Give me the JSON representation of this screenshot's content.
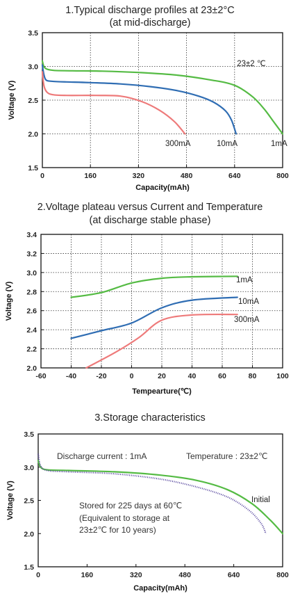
{
  "chart_data": [
    {
      "type": "line",
      "title": [
        "1.Typical discharge profiles at 23±2°C",
        "(at mid-discharge)"
      ],
      "xlabel": "Capacity(mAh)",
      "ylabel": "Voltage (V)",
      "xlim": [
        0,
        800
      ],
      "ylim": [
        1.5,
        3.5
      ],
      "xticks": [
        0,
        160,
        320,
        480,
        640,
        800
      ],
      "yticks": [
        1.5,
        2.0,
        2.5,
        3.0,
        3.5
      ],
      "grid": true,
      "annotation": "23±2 ℃",
      "series": [
        {
          "name": "1mA",
          "color": "#55bb44",
          "points": [
            [
              0,
              3.08
            ],
            [
              5,
              3.0
            ],
            [
              15,
              2.96
            ],
            [
              40,
              2.94
            ],
            [
              100,
              2.935
            ],
            [
              200,
              2.93
            ],
            [
              320,
              2.91
            ],
            [
              450,
              2.87
            ],
            [
              560,
              2.8
            ],
            [
              640,
              2.72
            ],
            [
              700,
              2.55
            ],
            [
              740,
              2.36
            ],
            [
              770,
              2.18
            ],
            [
              800,
              2.0
            ]
          ]
        },
        {
          "name": "10mA",
          "color": "#2f6db3",
          "points": [
            [
              0,
              3.02
            ],
            [
              5,
              2.88
            ],
            [
              12,
              2.8
            ],
            [
              30,
              2.78
            ],
            [
              80,
              2.77
            ],
            [
              160,
              2.76
            ],
            [
              260,
              2.74
            ],
            [
              360,
              2.7
            ],
            [
              450,
              2.64
            ],
            [
              520,
              2.56
            ],
            [
              570,
              2.47
            ],
            [
              610,
              2.34
            ],
            [
              630,
              2.2
            ],
            [
              645,
              2.0
            ]
          ]
        },
        {
          "name": "300mA",
          "color": "#ee7a7a",
          "points": [
            [
              0,
              2.92
            ],
            [
              5,
              2.72
            ],
            [
              15,
              2.62
            ],
            [
              35,
              2.58
            ],
            [
              80,
              2.57
            ],
            [
              180,
              2.57
            ],
            [
              260,
              2.56
            ],
            [
              330,
              2.48
            ],
            [
              390,
              2.35
            ],
            [
              440,
              2.18
            ],
            [
              475,
              2.0
            ]
          ]
        }
      ]
    },
    {
      "type": "line",
      "title": [
        "2.Voltage plateau versus Current and Temperature",
        "(at discharge stable phase)"
      ],
      "xlabel": "Tempearture(℃)",
      "ylabel": "Voltage (V)",
      "xlim": [
        -60,
        100
      ],
      "ylim": [
        2.0,
        3.4
      ],
      "xticks": [
        -60,
        -40,
        -20,
        0,
        20,
        40,
        60,
        80,
        100
      ],
      "yticks": [
        2.0,
        2.2,
        2.4,
        2.6,
        2.8,
        3.0,
        3.2,
        3.4
      ],
      "grid": true,
      "series": [
        {
          "name": "1mA",
          "color": "#55bb44",
          "points": [
            [
              -40,
              2.74
            ],
            [
              -20,
              2.79
            ],
            [
              0,
              2.89
            ],
            [
              20,
              2.94
            ],
            [
              40,
              2.955
            ],
            [
              70,
              2.96
            ]
          ]
        },
        {
          "name": "10mA",
          "color": "#2f6db3",
          "points": [
            [
              -40,
              2.31
            ],
            [
              -20,
              2.39
            ],
            [
              0,
              2.47
            ],
            [
              20,
              2.63
            ],
            [
              40,
              2.71
            ],
            [
              70,
              2.74
            ]
          ]
        },
        {
          "name": "300mA",
          "color": "#ee7a7a",
          "points": [
            [
              -30,
              2.0
            ],
            [
              -10,
              2.17
            ],
            [
              5,
              2.32
            ],
            [
              20,
              2.5
            ],
            [
              40,
              2.555
            ],
            [
              70,
              2.56
            ]
          ]
        }
      ]
    },
    {
      "type": "line",
      "title": [
        "3.Storage characteristics"
      ],
      "xlabel": "Capacity(mAh)",
      "ylabel": "Voltage (V)",
      "xlim": [
        0,
        800
      ],
      "ylim": [
        1.5,
        3.5
      ],
      "xticks": [
        0,
        160,
        320,
        480,
        640,
        800
      ],
      "yticks": [
        1.5,
        2.0,
        2.5,
        3.0,
        3.5
      ],
      "grid": false,
      "annotations": [
        "Discharge current : 1mA",
        "Temperature : 23±2℃",
        "Stored for 225 days at 60℃",
        "(Equivalent to storage at",
        "23±2℃  for 10 years)"
      ],
      "series": [
        {
          "name": "Initial",
          "color": "#55bb44",
          "points": [
            [
              0,
              3.1
            ],
            [
              8,
              3.0
            ],
            [
              30,
              2.96
            ],
            [
              100,
              2.95
            ],
            [
              250,
              2.93
            ],
            [
              400,
              2.88
            ],
            [
              520,
              2.8
            ],
            [
              620,
              2.66
            ],
            [
              700,
              2.45
            ],
            [
              760,
              2.2
            ],
            [
              800,
              2.0
            ]
          ]
        },
        {
          "name": "",
          "color": "#5a4aa0",
          "dotted": true,
          "points": [
            [
              0,
              3.2
            ],
            [
              8,
              3.02
            ],
            [
              30,
              2.95
            ],
            [
              100,
              2.93
            ],
            [
              250,
              2.9
            ],
            [
              400,
              2.82
            ],
            [
              520,
              2.7
            ],
            [
              620,
              2.55
            ],
            [
              690,
              2.35
            ],
            [
              730,
              2.15
            ],
            [
              745,
              2.0
            ]
          ]
        }
      ]
    }
  ]
}
